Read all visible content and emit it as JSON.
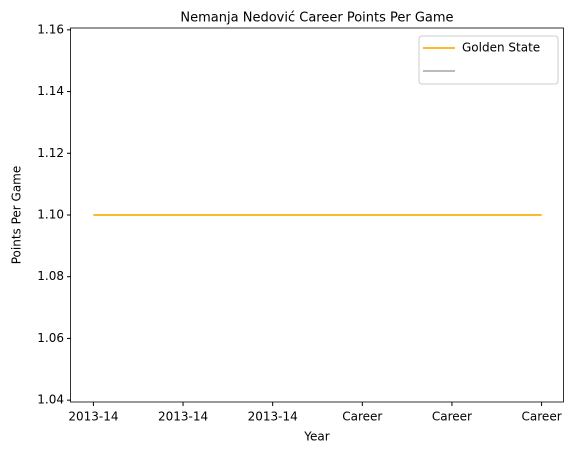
{
  "chart_data": {
    "type": "line",
    "title": "Nemanja Nedović Career Points Per Game",
    "xlabel": "Year",
    "ylabel": "Points Per Game",
    "categories": [
      "2013-14",
      "2013-14",
      "2013-14",
      "Career",
      "Career",
      "Career"
    ],
    "series": [
      {
        "color": "#bbbbbb",
        "values": [
          1.1,
          1.1,
          1.1,
          1.1,
          1.1,
          1.1
        ]
      },
      {
        "name": "Golden State",
        "color": "#fdb927",
        "values": [
          1.1,
          1.1,
          1.1,
          1.1,
          1.1,
          1.1
        ]
      }
    ],
    "ylim": [
      1.0394,
      1.1606
    ],
    "yticks": [
      1.04,
      1.06,
      1.08,
      {
        "value": 1.1,
        "label": "1.10"
      },
      1.12,
      1.14,
      1.16
    ],
    "legend": "upper right"
  }
}
